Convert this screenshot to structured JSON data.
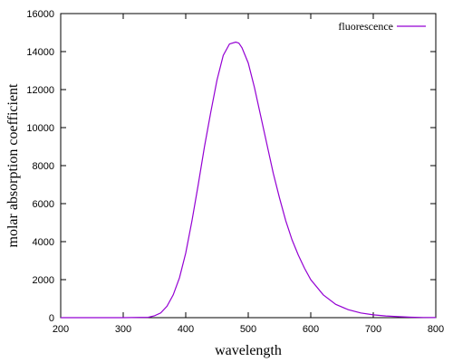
{
  "chart_data": {
    "type": "line",
    "xlabel": "wavelength",
    "ylabel": "molar absorption coefficient",
    "xlim": [
      200,
      800
    ],
    "ylim": [
      0,
      16000
    ],
    "x_ticks": [
      200,
      300,
      400,
      500,
      600,
      700,
      800
    ],
    "y_ticks": [
      0,
      2000,
      4000,
      6000,
      8000,
      10000,
      12000,
      14000,
      16000
    ],
    "grid": false,
    "legend_position": "top-right",
    "series": [
      {
        "name": "fluorescence",
        "color": "#9400d3",
        "x": [
          200,
          300,
          340,
          350,
          360,
          370,
          380,
          390,
          400,
          410,
          420,
          430,
          440,
          450,
          460,
          470,
          480,
          485,
          490,
          500,
          510,
          520,
          530,
          540,
          550,
          560,
          570,
          580,
          590,
          600,
          620,
          640,
          660,
          680,
          700,
          720,
          740,
          760,
          780,
          800
        ],
        "y": [
          0,
          0,
          20,
          100,
          250,
          600,
          1200,
          2100,
          3400,
          5100,
          7000,
          9000,
          10800,
          12500,
          13800,
          14400,
          14500,
          14450,
          14200,
          13400,
          12100,
          10600,
          9100,
          7600,
          6300,
          5100,
          4100,
          3300,
          2600,
          2000,
          1200,
          700,
          420,
          250,
          150,
          90,
          50,
          25,
          10,
          5
        ]
      }
    ]
  }
}
